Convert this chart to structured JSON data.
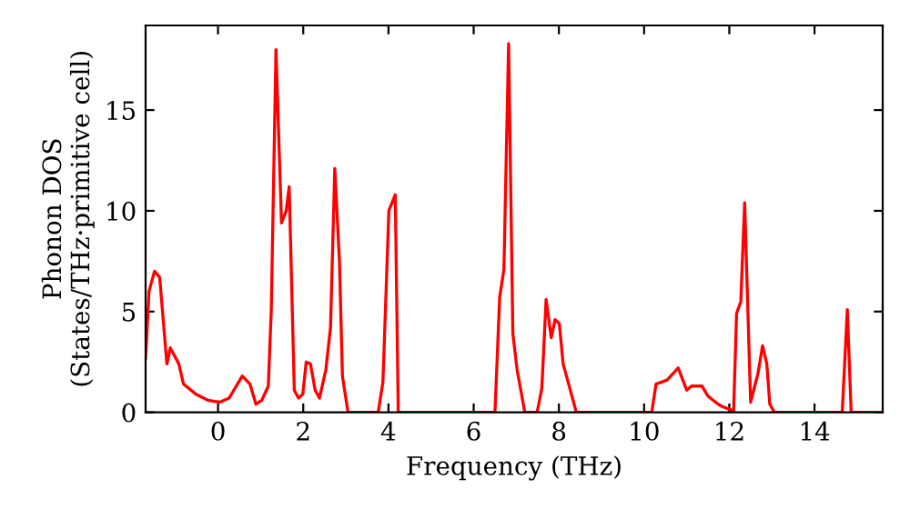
{
  "chart_data": {
    "type": "line",
    "xlabel": "Frequency (THz)",
    "ylabel": "Phonon DOS\n(States/THz·primitive cell)",
    "xlim": [
      -1.7,
      15.6
    ],
    "ylim": [
      0,
      19.2
    ],
    "xticks": [
      0,
      2,
      4,
      6,
      8,
      10,
      12,
      14
    ],
    "yticks": [
      0,
      5,
      10,
      15
    ],
    "marker": "none",
    "line_style": "solid",
    "series": [
      {
        "color": "#ff0000",
        "x": [
          -1.7,
          -1.62,
          -1.49,
          -1.37,
          -1.2,
          -1.12,
          -0.92,
          -0.81,
          -0.52,
          -0.24,
          0.04,
          0.26,
          0.57,
          0.75,
          0.89,
          1.03,
          1.18,
          1.25,
          1.36,
          1.49,
          1.6,
          1.67,
          1.79,
          1.89,
          1.99,
          2.07,
          2.17,
          2.28,
          2.38,
          2.53,
          2.64,
          2.74,
          2.85,
          2.92,
          3.05,
          3.76,
          3.87,
          4.01,
          4.16,
          4.23,
          6.5,
          6.61,
          6.71,
          6.82,
          6.92,
          7.02,
          7.2,
          7.49,
          7.6,
          7.7,
          7.82,
          7.91,
          8.01,
          8.1,
          8.41,
          10.18,
          10.28,
          10.54,
          10.8,
          11.0,
          11.11,
          11.36,
          11.5,
          11.74,
          11.82,
          12.06,
          12.1,
          12.17,
          12.27,
          12.36,
          12.5,
          12.67,
          12.78,
          12.88,
          12.95,
          13.06,
          14.65,
          14.77,
          14.86,
          15.6
        ],
        "values": [
          2.7,
          6.0,
          7.0,
          6.7,
          2.4,
          3.2,
          2.4,
          1.4,
          0.9,
          0.6,
          0.5,
          0.7,
          1.8,
          1.4,
          0.4,
          0.6,
          1.3,
          5.1,
          18.0,
          9.4,
          10.0,
          11.2,
          1.1,
          0.7,
          0.9,
          2.5,
          2.4,
          1.1,
          0.7,
          2.1,
          4.2,
          12.1,
          7.5,
          1.8,
          0,
          0,
          1.5,
          10.0,
          10.8,
          0,
          0,
          5.7,
          7.1,
          18.3,
          3.9,
          2.1,
          0,
          0,
          1.2,
          5.6,
          3.7,
          4.6,
          4.4,
          2.4,
          0,
          0,
          1.4,
          1.6,
          2.2,
          1.1,
          1.3,
          1.3,
          0.8,
          0.4,
          0.3,
          0.1,
          0,
          4.9,
          5.5,
          10.4,
          0.5,
          1.9,
          3.3,
          2.4,
          0.4,
          0,
          0,
          5.1,
          0,
          0
        ]
      }
    ]
  }
}
